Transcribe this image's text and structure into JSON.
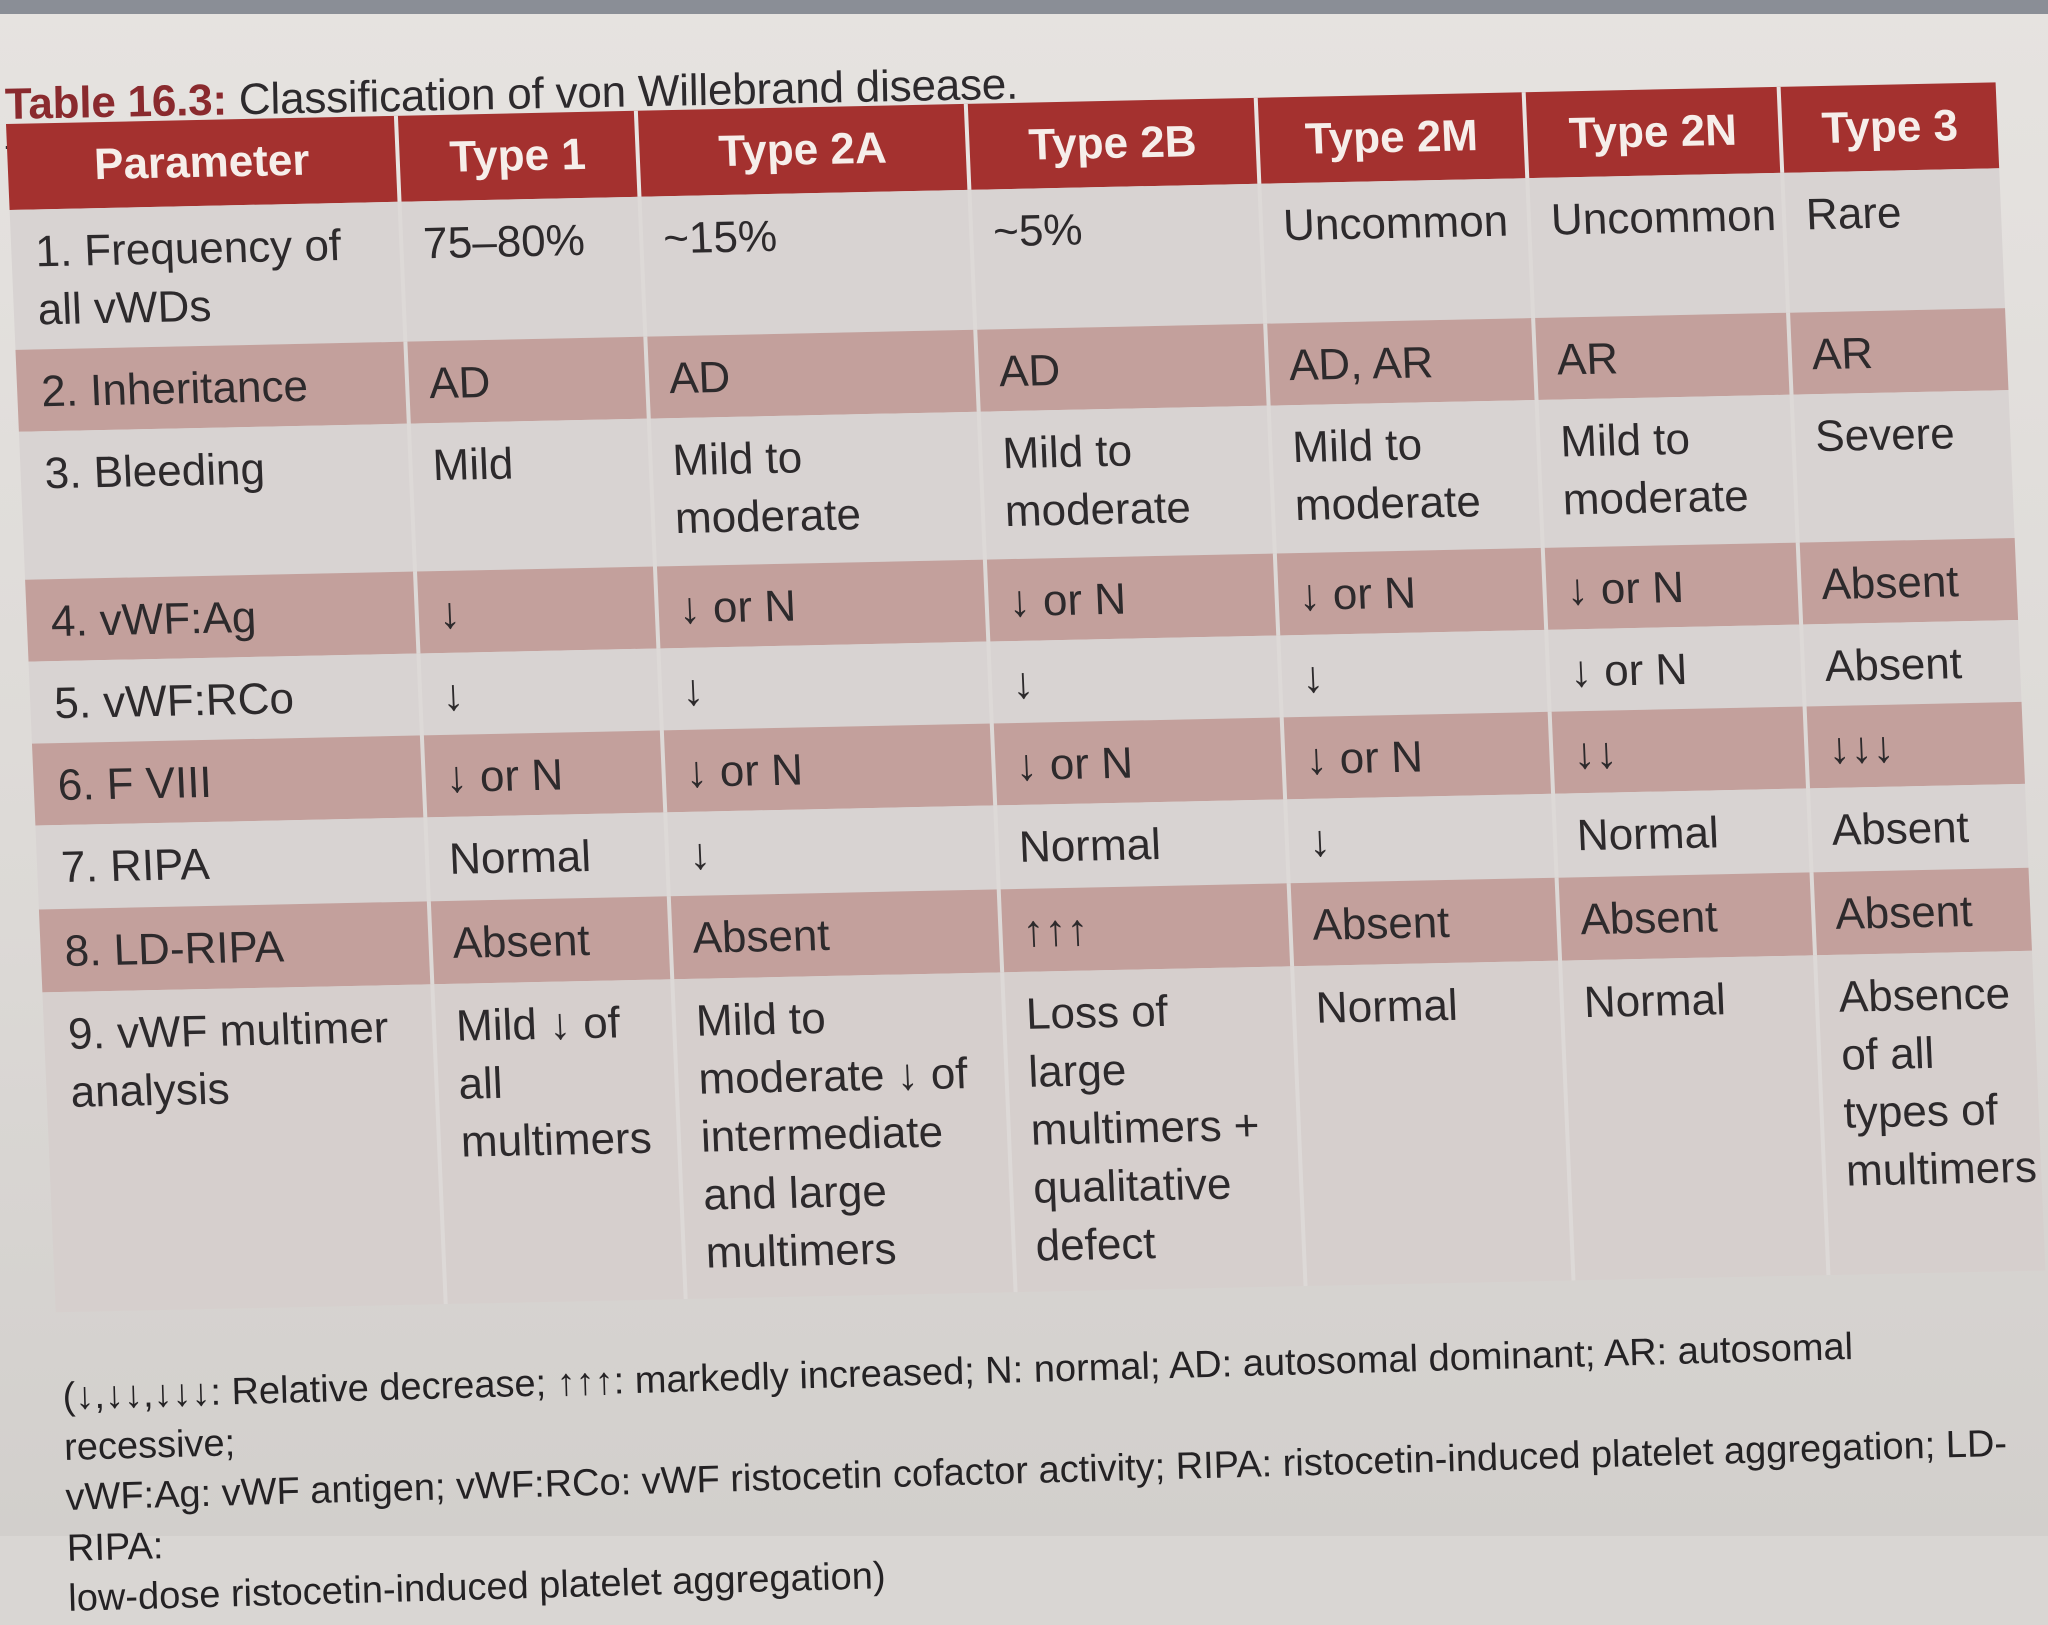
{
  "caption": {
    "label": "Table 16.3:",
    "text": "Classification of von Willebrand disease."
  },
  "table": {
    "headers": [
      "Parameter",
      "Type 1",
      "Type 2A",
      "Type 2B",
      "Type 2M",
      "Type 2N",
      "Type 3"
    ],
    "rows": [
      [
        "1. Frequency of all vWDs",
        "75–80%",
        "~15%",
        "~5%",
        "Uncommon",
        "Uncommon",
        "Rare"
      ],
      [
        "2. Inheritance",
        "AD",
        "AD",
        "AD",
        "AD, AR",
        "AR",
        "AR"
      ],
      [
        "3. Bleeding",
        "Mild",
        "Mild to moderate",
        "Mild to moderate",
        "Mild to moderate",
        "Mild to moderate",
        "Severe"
      ],
      [
        "4. vWF:Ag",
        "↓",
        "↓ or N",
        "↓ or N",
        "↓ or N",
        "↓ or N",
        "Absent"
      ],
      [
        "5. vWF:RCo",
        "↓",
        "↓",
        "↓",
        "↓",
        "↓ or N",
        "Absent"
      ],
      [
        "6. F VIII",
        "↓ or N",
        "↓ or N",
        "↓ or N",
        "↓ or N",
        "↓↓",
        "↓↓↓"
      ],
      [
        "7. RIPA",
        "Normal",
        "↓",
        "Normal",
        "↓",
        "Normal",
        "Absent"
      ],
      [
        "8. LD-RIPA",
        "Absent",
        "Absent",
        "↑↑↑",
        "Absent",
        "Absent",
        "Absent"
      ],
      [
        "9. vWF multimer analysis",
        "Mild ↓ of all multimers",
        "Mild to moderate ↓ of intermediate and large multimers",
        "Loss of large multimers + qualitative defect",
        "Normal",
        "Normal",
        "Absence of all types of multimers"
      ]
    ]
  },
  "footnote": {
    "line1": "(↓,↓↓,↓↓↓: Relative decrease; ↑↑↑: markedly increased; N: normal; AD: autosomal dominant; AR: autosomal recessive;",
    "line2": "vWF:Ag: vWF antigen; vWF:RCo: vWF ristocetin cofactor activity; RIPA: ristocetin-induced platelet aggregation; LD-RIPA:",
    "line3": "low-dose ristocetin-induced platelet aggregation)"
  }
}
